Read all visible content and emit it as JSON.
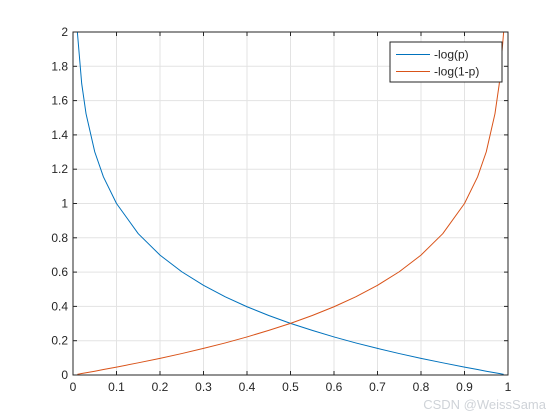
{
  "chart_data": {
    "type": "line",
    "title": "",
    "xlabel": "",
    "ylabel": "",
    "xlim": [
      0,
      1
    ],
    "ylim": [
      0,
      2
    ],
    "x_ticks": [
      0,
      0.1,
      0.2,
      0.3,
      0.4,
      0.5,
      0.6,
      0.7,
      0.8,
      0.9,
      1
    ],
    "x_tick_labels": [
      "0",
      "0.1",
      "0.2",
      "0.3",
      "0.4",
      "0.5",
      "0.6",
      "0.7",
      "0.8",
      "0.9",
      "1"
    ],
    "y_ticks": [
      0,
      0.2,
      0.4,
      0.6,
      0.8,
      1,
      1.2,
      1.4,
      1.6,
      1.8,
      2
    ],
    "y_tick_labels": [
      "0",
      "0.2",
      "0.4",
      "0.6",
      "0.8",
      "1",
      "1.2",
      "1.4",
      "1.6",
      "1.8",
      "2"
    ],
    "grid": true,
    "legend_position": "top-right",
    "x": [
      0.01,
      0.02,
      0.03,
      0.05,
      0.07,
      0.1,
      0.15,
      0.2,
      0.25,
      0.3,
      0.35,
      0.4,
      0.45,
      0.5,
      0.55,
      0.6,
      0.65,
      0.7,
      0.75,
      0.8,
      0.85,
      0.9,
      0.93,
      0.95,
      0.97,
      0.98,
      0.99
    ],
    "series": [
      {
        "name": "-log(p)",
        "color": "#0072bd",
        "values": [
          2.0,
          1.699,
          1.523,
          1.301,
          1.155,
          1.0,
          0.824,
          0.699,
          0.602,
          0.523,
          0.456,
          0.398,
          0.347,
          0.301,
          0.26,
          0.222,
          0.187,
          0.155,
          0.125,
          0.097,
          0.071,
          0.046,
          0.032,
          0.022,
          0.013,
          0.009,
          0.004
        ]
      },
      {
        "name": "-log(1-p)",
        "color": "#d95319",
        "values": [
          0.004,
          0.009,
          0.013,
          0.022,
          0.032,
          0.046,
          0.071,
          0.097,
          0.125,
          0.155,
          0.187,
          0.222,
          0.26,
          0.301,
          0.347,
          0.398,
          0.456,
          0.523,
          0.602,
          0.699,
          0.824,
          1.0,
          1.155,
          1.301,
          1.523,
          1.699,
          2.0
        ]
      }
    ]
  },
  "watermark": "CSDN @WeissSama"
}
